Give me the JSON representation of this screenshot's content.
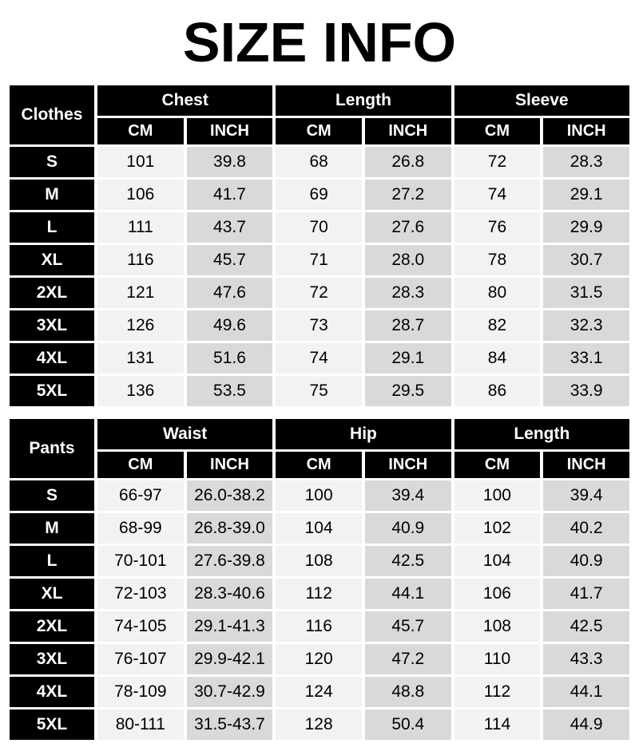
{
  "page": {
    "title": "SIZE INFO"
  },
  "colors": {
    "header_bg": "#000000",
    "header_text": "#ffffff",
    "cm_bg": "#f2f2f2",
    "inch_bg": "#d9d9d9",
    "gap": "#ffffff",
    "data_text": "#000000"
  },
  "tables": [
    {
      "name": "clothes-size-table",
      "corner_label": "Clothes",
      "groups": [
        {
          "label": "Chest",
          "sub": [
            "CM",
            "INCH"
          ]
        },
        {
          "label": "Length",
          "sub": [
            "CM",
            "INCH"
          ]
        },
        {
          "label": "Sleeve",
          "sub": [
            "CM",
            "INCH"
          ]
        }
      ],
      "rows": [
        {
          "size": "S",
          "values": [
            "101",
            "39.8",
            "68",
            "26.8",
            "72",
            "28.3"
          ]
        },
        {
          "size": "M",
          "values": [
            "106",
            "41.7",
            "69",
            "27.2",
            "74",
            "29.1"
          ]
        },
        {
          "size": "L",
          "values": [
            "111",
            "43.7",
            "70",
            "27.6",
            "76",
            "29.9"
          ]
        },
        {
          "size": "XL",
          "values": [
            "116",
            "45.7",
            "71",
            "28.0",
            "78",
            "30.7"
          ]
        },
        {
          "size": "2XL",
          "values": [
            "121",
            "47.6",
            "72",
            "28.3",
            "80",
            "31.5"
          ]
        },
        {
          "size": "3XL",
          "values": [
            "126",
            "49.6",
            "73",
            "28.7",
            "82",
            "32.3"
          ]
        },
        {
          "size": "4XL",
          "values": [
            "131",
            "51.6",
            "74",
            "29.1",
            "84",
            "33.1"
          ]
        },
        {
          "size": "5XL",
          "values": [
            "136",
            "53.5",
            "75",
            "29.5",
            "86",
            "33.9"
          ]
        }
      ]
    },
    {
      "name": "pants-size-table",
      "corner_label": "Pants",
      "groups": [
        {
          "label": "Waist",
          "sub": [
            "CM",
            "INCH"
          ]
        },
        {
          "label": "Hip",
          "sub": [
            "CM",
            "INCH"
          ]
        },
        {
          "label": "Length",
          "sub": [
            "CM",
            "INCH"
          ]
        }
      ],
      "rows": [
        {
          "size": "S",
          "values": [
            "66-97",
            "26.0-38.2",
            "100",
            "39.4",
            "100",
            "39.4"
          ]
        },
        {
          "size": "M",
          "values": [
            "68-99",
            "26.8-39.0",
            "104",
            "40.9",
            "102",
            "40.2"
          ]
        },
        {
          "size": "L",
          "values": [
            "70-101",
            "27.6-39.8",
            "108",
            "42.5",
            "104",
            "40.9"
          ]
        },
        {
          "size": "XL",
          "values": [
            "72-103",
            "28.3-40.6",
            "112",
            "44.1",
            "106",
            "41.7"
          ]
        },
        {
          "size": "2XL",
          "values": [
            "74-105",
            "29.1-41.3",
            "116",
            "45.7",
            "108",
            "42.5"
          ]
        },
        {
          "size": "3XL",
          "values": [
            "76-107",
            "29.9-42.1",
            "120",
            "47.2",
            "110",
            "43.3"
          ]
        },
        {
          "size": "4XL",
          "values": [
            "78-109",
            "30.7-42.9",
            "124",
            "48.8",
            "112",
            "44.1"
          ]
        },
        {
          "size": "5XL",
          "values": [
            "80-111",
            "31.5-43.7",
            "128",
            "50.4",
            "114",
            "44.9"
          ]
        }
      ]
    }
  ]
}
